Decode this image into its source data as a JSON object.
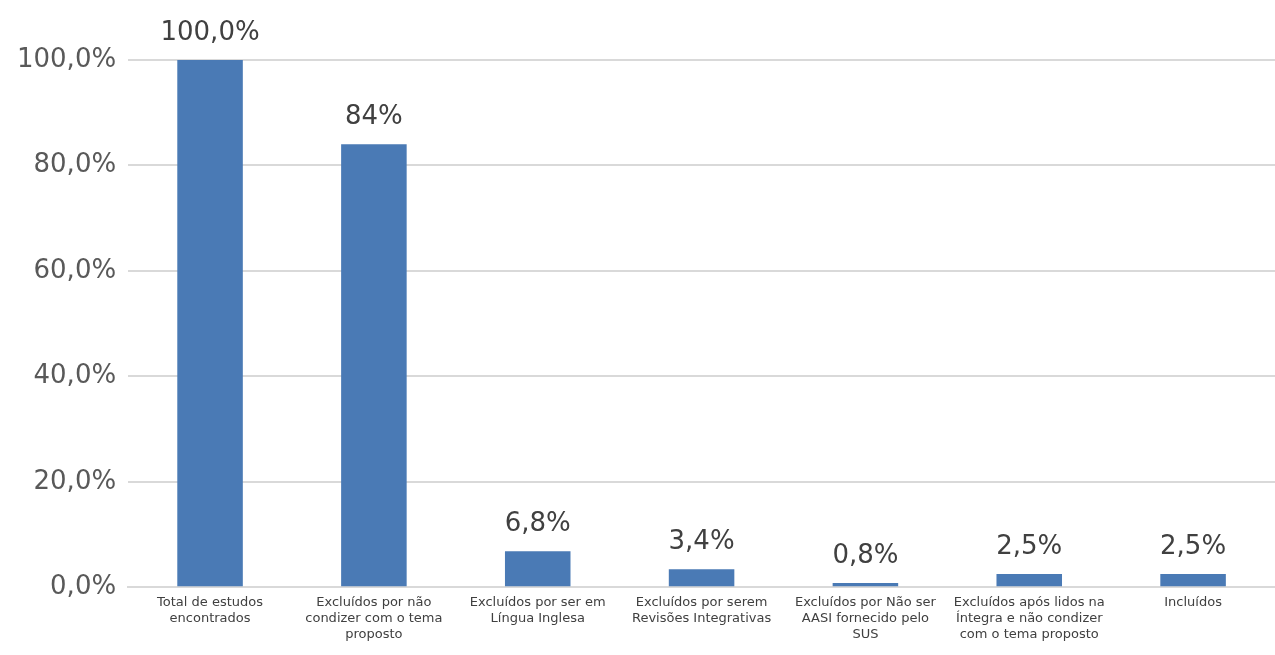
{
  "chart_data": {
    "type": "bar",
    "categories": [
      "Total de estudos encontrados",
      "Excluídos por não condizer com o tema proposto",
      "Excluídos por ser em Língua Inglesa",
      "Excluídos por serem Revisões Integrativas",
      "Excluídos por Não ser AASI fornecido pelo SUS",
      "Excluídos após lidos na Íntegra e não condizer com o tema proposto",
      "Incluídos"
    ],
    "values": [
      100,
      84,
      6.8,
      3.4,
      0.8,
      2.5,
      2.5
    ],
    "value_labels": [
      "100,0%",
      "84%",
      "6,8%",
      "3,4%",
      "0,8%",
      "2,5%",
      "2,5%"
    ],
    "color": "#4a7ab5",
    "ylim": [
      0,
      100
    ],
    "yticks": [
      {
        "value": 0,
        "label": "0,0%"
      },
      {
        "value": 20,
        "label": "20,0%"
      },
      {
        "value": 40,
        "label": "40,0%"
      },
      {
        "value": 60,
        "label": "60,0%"
      },
      {
        "value": 80,
        "label": "80,0%"
      },
      {
        "value": 100,
        "label": "100,0%"
      }
    ],
    "grid": "y",
    "legend": false
  }
}
